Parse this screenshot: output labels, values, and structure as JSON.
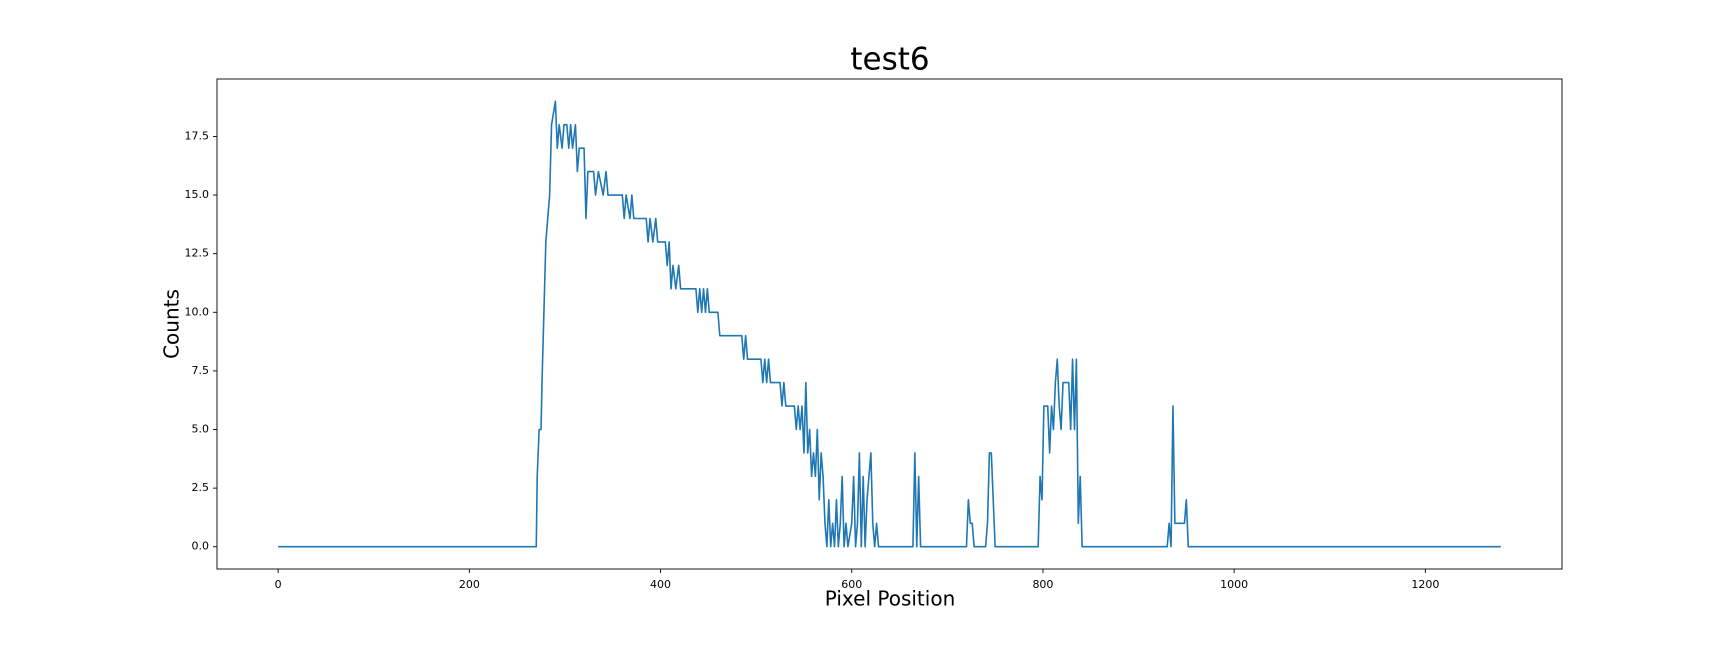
{
  "chart_data": {
    "type": "line",
    "title": "test6",
    "x_label": "Pixel Position",
    "y_label": "Counts",
    "x": [
      0,
      270,
      271,
      273,
      275,
      276,
      278,
      280,
      282,
      284,
      286,
      290,
      292,
      294,
      297,
      299,
      302,
      304,
      306,
      308,
      311,
      313,
      315,
      320,
      322,
      324,
      330,
      332,
      335,
      340,
      343,
      345,
      360,
      362,
      364,
      368,
      370,
      372,
      385,
      387,
      389,
      392,
      395,
      397,
      405,
      407,
      409,
      411,
      413,
      416,
      419,
      421,
      437,
      439,
      441,
      443,
      445,
      447,
      449,
      451,
      460,
      462,
      485,
      487,
      489,
      491,
      505,
      507,
      509,
      511,
      513,
      515,
      525,
      527,
      529,
      531,
      540,
      542,
      544,
      546,
      548,
      550,
      552,
      554,
      556,
      558,
      560,
      562,
      564,
      566,
      568,
      570,
      572,
      574,
      576,
      578,
      580,
      582,
      584,
      586,
      588,
      590,
      592,
      594,
      596,
      600,
      602,
      604,
      606,
      608,
      610,
      612,
      614,
      616,
      618,
      620,
      622,
      624,
      626,
      628,
      664,
      666,
      668,
      670,
      672,
      720,
      722,
      724,
      726,
      728,
      740,
      742,
      744,
      746,
      748,
      750,
      795,
      797,
      799,
      801,
      805,
      807,
      809,
      811,
      813,
      815,
      817,
      819,
      821,
      827,
      829,
      831,
      833,
      835,
      837,
      839,
      841,
      930,
      932,
      934,
      936,
      938,
      948,
      950,
      952,
      1279
    ],
    "series": [
      {
        "name": "test6",
        "color": "#1f77b4",
        "values": [
          0,
          0,
          3,
          5,
          5,
          7,
          10,
          13,
          14,
          15,
          18,
          19,
          17,
          18,
          17,
          18,
          18,
          17,
          18,
          17,
          18,
          16,
          17,
          17,
          14,
          16,
          16,
          15,
          16,
          15,
          16,
          15,
          15,
          14,
          15,
          14,
          15,
          14,
          14,
          13,
          14,
          13,
          14,
          13,
          13,
          12,
          13,
          11,
          12,
          11,
          12,
          11,
          11,
          10,
          11,
          10,
          11,
          10,
          11,
          10,
          10,
          9,
          9,
          8,
          9,
          8,
          8,
          7,
          8,
          7,
          8,
          7,
          7,
          6,
          7,
          6,
          6,
          5,
          6,
          5,
          6,
          4,
          7,
          4,
          5,
          3,
          4,
          3,
          5,
          2,
          4,
          3,
          1,
          0,
          2,
          0,
          1,
          0,
          2,
          0,
          1,
          3,
          0,
          1,
          0,
          1,
          3,
          0,
          1,
          4,
          0,
          3,
          0,
          2,
          3,
          4,
          1,
          0,
          1,
          0,
          0,
          4,
          0,
          3,
          0,
          0,
          2,
          1,
          1,
          0,
          0,
          1,
          4,
          4,
          2,
          0,
          0,
          3,
          2,
          6,
          6,
          4,
          6,
          5,
          7,
          8,
          6,
          5,
          7,
          7,
          5,
          8,
          5,
          8,
          1,
          3,
          0,
          0,
          1,
          0,
          6,
          1,
          1,
          2,
          0,
          0
        ]
      }
    ],
    "xlim": [
      -63.95,
      1342.95
    ],
    "ylim": [
      -0.95,
      19.95
    ],
    "xticks": [
      0,
      200,
      400,
      600,
      800,
      1000,
      1200
    ],
    "yticks": [
      {
        "value": 0,
        "label": "0.0"
      },
      2.5,
      {
        "value": 5,
        "label": "5.0"
      },
      7.5,
      {
        "value": 10,
        "label": "10.0"
      },
      12.5,
      {
        "value": 15,
        "label": "15.0"
      },
      17.5
    ]
  }
}
